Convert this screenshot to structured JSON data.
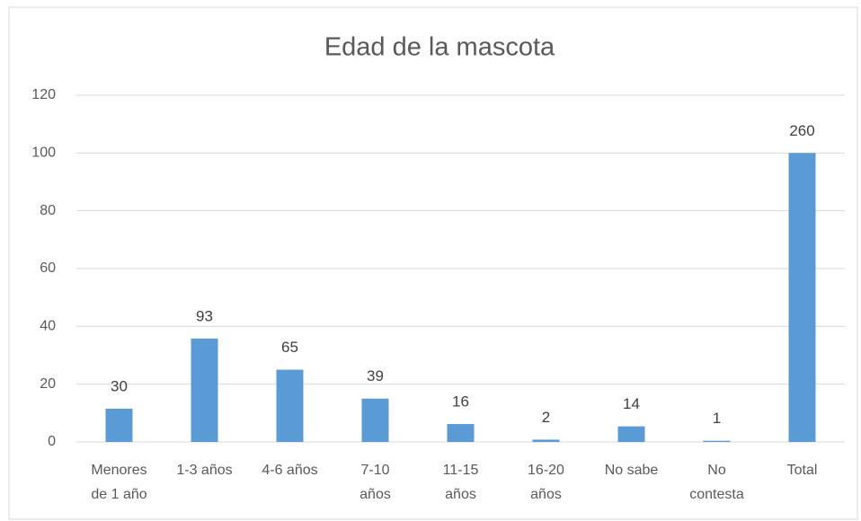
{
  "chart_data": {
    "type": "bar",
    "title": "Edad de la mascota",
    "categories": [
      [
        "Menores",
        "de 1 año"
      ],
      [
        "1-3 años"
      ],
      [
        "4-6 años"
      ],
      [
        "7-10",
        "años"
      ],
      [
        "11-15",
        "años"
      ],
      [
        "16-20",
        "años"
      ],
      [
        "No sabe"
      ],
      [
        "No",
        "contesta"
      ],
      [
        "Total"
      ]
    ],
    "values": [
      11.5,
      35.8,
      25,
      15,
      6.2,
      0.8,
      5.4,
      0.4,
      100
    ],
    "data_labels": [
      30,
      93,
      65,
      39,
      16,
      2,
      14,
      1,
      260
    ],
    "color": "#5b9bd5",
    "ylim": [
      0,
      120
    ],
    "yticks": [
      0,
      20,
      40,
      60,
      80,
      100,
      120
    ],
    "grid": true
  }
}
